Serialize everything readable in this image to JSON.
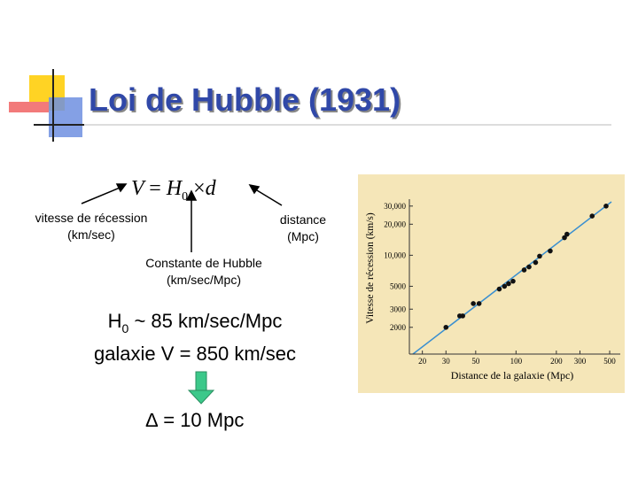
{
  "slide": {
    "title": "Loi de Hubble (1931)",
    "equation": {
      "v": "V",
      "eq": "=",
      "h": "H",
      "sub": "0",
      "times": "×",
      "d": "d"
    },
    "label_velocity": [
      "vitesse de récession",
      "(km/sec)"
    ],
    "label_distance": [
      "distance",
      "(Mpc)"
    ],
    "label_constant": [
      "Constante de Hubble",
      "(km/sec/Mpc)"
    ],
    "line1": {
      "h": "H",
      "sub": "0",
      "rest": " ~ 85 km/sec/Mpc"
    },
    "line2": "galaxie V = 850 km/sec",
    "line3": "∆ = 10 Mpc"
  },
  "chart_data": {
    "type": "scatter",
    "x_label": "Distance de la galaxie (Mpc)",
    "y_label": "Vitesse de récession (km/s)",
    "x": [
      30,
      38,
      40,
      48,
      53,
      75,
      82,
      88,
      95,
      115,
      125,
      140,
      150,
      180,
      230,
      240,
      370,
      470
    ],
    "values": [
      2000,
      2580,
      2580,
      3400,
      3400,
      4700,
      5000,
      5300,
      5600,
      7200,
      7700,
      8500,
      9800,
      11000,
      14800,
      16000,
      24000,
      30000
    ],
    "color": "#111111",
    "log_x": true,
    "log_y": true,
    "xlim": [
      16,
      600
    ],
    "ylim": [
      1100,
      35000
    ],
    "xticks": [
      20,
      30,
      50,
      100,
      200,
      300,
      500
    ],
    "yticks": [
      2000,
      3000,
      5000,
      {
        "value": 10000,
        "label": "10,000"
      },
      {
        "value": 20000,
        "label": "20,000"
      },
      {
        "value": 30000,
        "label": "30,000"
      }
    ]
  }
}
